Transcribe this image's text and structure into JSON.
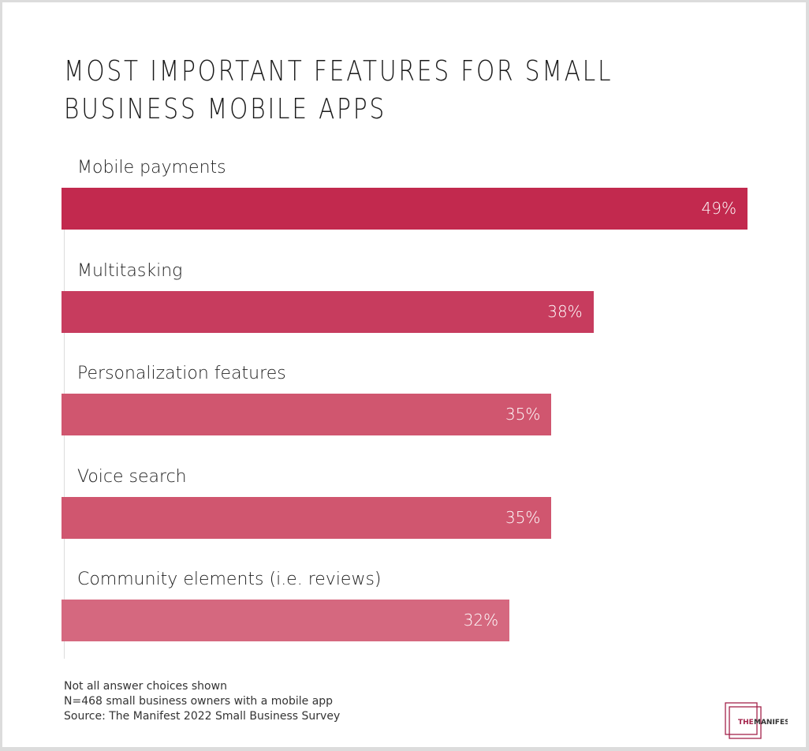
{
  "chart_data": {
    "type": "bar",
    "orientation": "horizontal",
    "title": "MOST IMPORTANT FEATURES FOR SMALL BUSINESS MOBILE APPS",
    "categories": [
      "Mobile payments",
      "Multitasking",
      "Personalization features",
      "Voice search",
      "Community elements (i.e. reviews)"
    ],
    "values": [
      49,
      38,
      35,
      35,
      32
    ],
    "value_labels": [
      "49%",
      "38%",
      "35%",
      "35%",
      "32%"
    ],
    "colors": [
      "#c2294e",
      "#c73c5e",
      "#d0566f",
      "#d0566f",
      "#d5687f"
    ],
    "xlim": [
      0,
      49
    ],
    "grid": false
  },
  "notes": [
    "Not all answer choices shown",
    "N=468 small business owners with a mobile app",
    "Source: The Manifest 2022 Small Business Survey"
  ],
  "logo": {
    "text_1": "THE",
    "text_2": "MANIFEST",
    "accent": "#a3224a"
  }
}
